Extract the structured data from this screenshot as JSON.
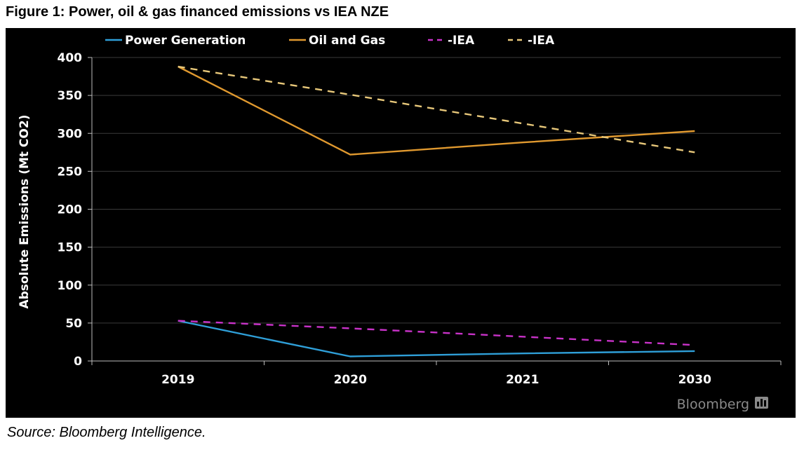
{
  "figure": {
    "title": "Figure 1: Power, oil & gas financed emissions vs IEA NZE",
    "source": "Source: Bloomberg Intelligence.",
    "watermark": "Bloomberg"
  },
  "chart_data": {
    "type": "line",
    "title": "Power, oil & gas financed emissions vs IEA NZE",
    "xlabel": "",
    "ylabel": "Absolute Emissions (Mt CO2)",
    "categories": [
      "2019",
      "2020",
      "2021",
      "2030"
    ],
    "ylim": [
      0,
      400
    ],
    "yticks": [
      0,
      50,
      100,
      150,
      200,
      250,
      300,
      350,
      400
    ],
    "grid": true,
    "legend_position": "top",
    "background": "#000000",
    "series": [
      {
        "name": "Power Generation",
        "values": [
          53,
          6,
          10,
          13
        ],
        "color": "#2f9fd8",
        "dash": "solid"
      },
      {
        "name": "Oil and Gas",
        "values": [
          388,
          272,
          288,
          303
        ],
        "color": "#e0992f",
        "dash": "solid"
      },
      {
        "name": "-IEA",
        "values": [
          53,
          43,
          32,
          21
        ],
        "color": "#c832c8",
        "dash": "dashed"
      },
      {
        "name": "-IEA",
        "values": [
          388,
          351,
          313,
          275
        ],
        "color": "#e8c87a",
        "dash": "dashed"
      }
    ]
  }
}
